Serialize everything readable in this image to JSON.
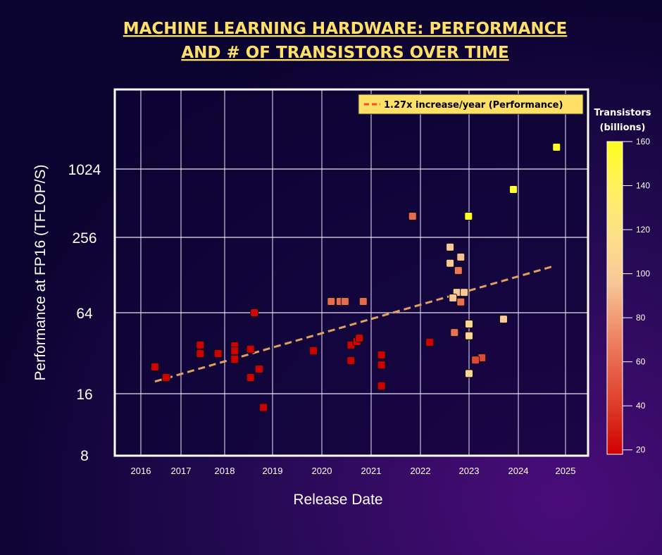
{
  "chart_data": {
    "type": "scatter",
    "title_lines": [
      "MACHINE LEARNING HARDWARE: PERFORMANCE",
      "AND # OF TRANSISTORS OVER TIME"
    ],
    "xlabel": "Release Date",
    "ylabel": "Performance at FP16 (TFLOP/S)",
    "x_ticks": [
      "2016",
      "2017",
      "2018",
      "2019",
      "2020",
      "2021",
      "2022",
      "2023",
      "2024",
      "2025"
    ],
    "y_scale": "log2",
    "y_ticks": [
      "8",
      "16",
      "64",
      "256",
      "1024"
    ],
    "grid": true,
    "legend": {
      "label": "1.27x increase/year (Performance)",
      "placement": "top-right",
      "color": "#ff4a2a"
    },
    "trend": {
      "growth_per_year": 1.27,
      "start": [
        2016.35,
        19.7
      ],
      "end": [
        2024.73,
        150
      ],
      "color": "#e0a060"
    },
    "colorbar": {
      "title_lines": [
        "Transistors",
        "(billions)"
      ],
      "range": [
        18,
        160
      ],
      "ticks": [
        "20",
        "40",
        "60",
        "80",
        "100",
        "120",
        "140",
        "160"
      ]
    },
    "point_fields": [
      "release_year",
      "tflops_fp16",
      "transistors_billions"
    ],
    "points": [
      [
        2016.35,
        25.3,
        18
      ],
      [
        2016.63,
        21.1,
        18
      ],
      [
        2017.44,
        36.8,
        18
      ],
      [
        2017.44,
        31.8,
        18
      ],
      [
        2017.85,
        31.8,
        18
      ],
      [
        2018.21,
        36.3,
        18
      ],
      [
        2018.21,
        33.4,
        18
      ],
      [
        2018.21,
        28.9,
        18
      ],
      [
        2018.54,
        34.3,
        18
      ],
      [
        2018.62,
        64,
        20
      ],
      [
        2018.72,
        24.4,
        18
      ],
      [
        2018.54,
        21.1,
        18
      ],
      [
        2018.81,
        13.7,
        18
      ],
      [
        2019.83,
        33.4,
        18
      ],
      [
        2020.59,
        36.8,
        18
      ],
      [
        2020.71,
        39.1,
        20
      ],
      [
        2020.76,
        41.4,
        20
      ],
      [
        2020.59,
        28.2,
        18
      ],
      [
        2021.21,
        31.1,
        18
      ],
      [
        2021.21,
        26.2,
        18
      ],
      [
        2021.21,
        18.3,
        18
      ],
      [
        2020.19,
        78.8,
        54
      ],
      [
        2020.37,
        78.8,
        54
      ],
      [
        2020.47,
        78.8,
        54
      ],
      [
        2020.84,
        78.8,
        54
      ],
      [
        2021.84,
        393,
        54
      ],
      [
        2022.99,
        393,
        155
      ],
      [
        2023.9,
        676,
        150
      ],
      [
        2024.81,
        1595,
        158
      ],
      [
        2022.61,
        214,
        80
      ],
      [
        2022.83,
        178,
        78
      ],
      [
        2022.61,
        159,
        80
      ],
      [
        2022.78,
        139,
        58
      ],
      [
        2022.75,
        93,
        80
      ],
      [
        2022.9,
        93,
        80
      ],
      [
        2022.67,
        84,
        80
      ],
      [
        2022.83,
        78,
        56
      ],
      [
        2023.7,
        57.3,
        80
      ],
      [
        2023.0,
        52.8,
        92
      ],
      [
        2022.7,
        45.6,
        56
      ],
      [
        2023.0,
        43.1,
        92
      ],
      [
        2022.19,
        38.6,
        18
      ],
      [
        2023.26,
        29.6,
        44
      ],
      [
        2023.13,
        28.5,
        44
      ],
      [
        2023.0,
        22.6,
        92
      ]
    ]
  }
}
